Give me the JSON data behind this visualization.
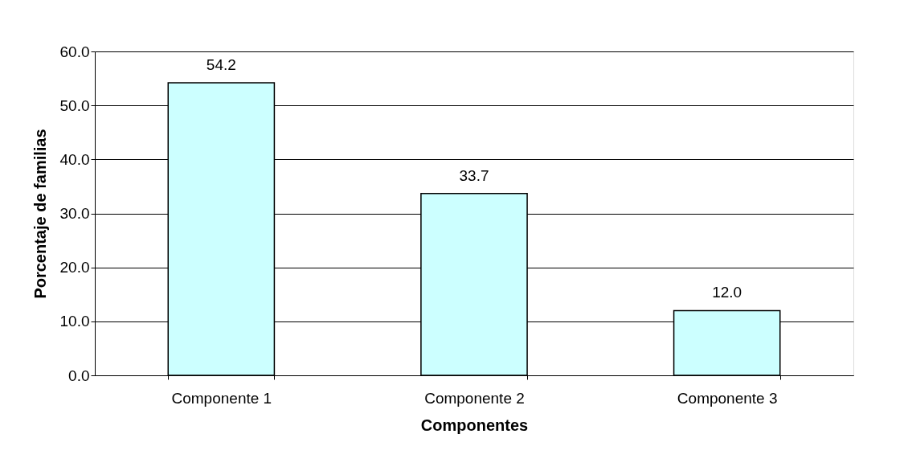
{
  "chart_data": {
    "type": "bar",
    "xlabel": "Componentes",
    "ylabel": "Porcentaje de familias",
    "categories": [
      "Componente 1",
      "Componente 2",
      "Componente 3"
    ],
    "values": [
      54.2,
      33.7,
      12.0
    ],
    "color": "#ccffff",
    "ylim": [
      0,
      60
    ],
    "yticks": [
      {
        "value": 0,
        "label": "0.0"
      },
      {
        "value": 10,
        "label": "10.0"
      },
      {
        "value": 20,
        "label": "20.0"
      },
      {
        "value": 30,
        "label": "30.0"
      },
      {
        "value": 40,
        "label": "40.0"
      },
      {
        "value": 50,
        "label": "50.0"
      },
      {
        "value": 60,
        "label": "60.0"
      }
    ],
    "grid": "y",
    "value_labels": [
      "54.2",
      "33.7",
      "12.0"
    ]
  }
}
